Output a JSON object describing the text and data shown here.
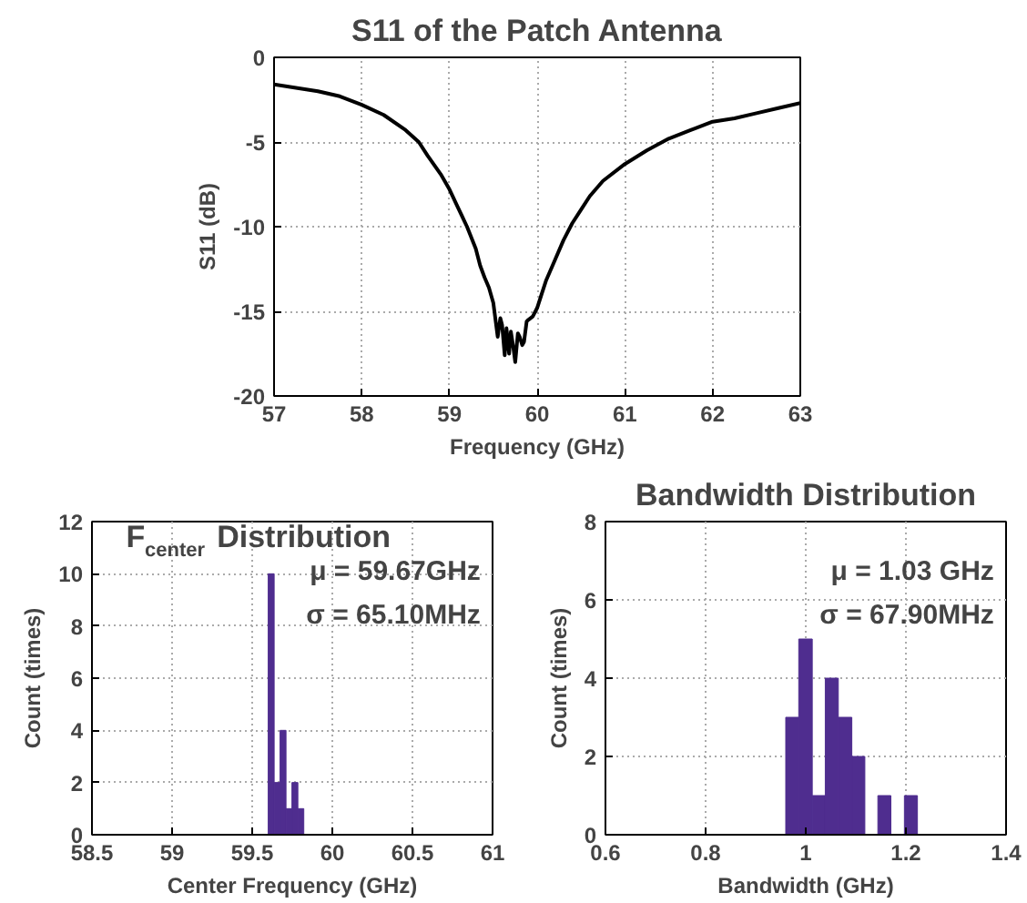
{
  "chart_data": [
    {
      "type": "line",
      "title": "S11 of the Patch Antenna",
      "xlabel": "Frequency (GHz)",
      "ylabel": "S11 (dB)",
      "x": [
        57,
        57.25,
        57.5,
        57.75,
        58,
        58.25,
        58.5,
        58.65,
        58.75,
        58.9,
        59,
        59.1,
        59.2,
        59.3,
        59.35,
        59.4,
        59.45,
        59.5,
        59.55,
        59.58,
        59.6,
        59.63,
        59.65,
        59.68,
        59.7,
        59.73,
        59.75,
        59.78,
        59.8,
        59.83,
        59.85,
        59.88,
        59.9,
        59.95,
        60,
        60.05,
        60.1,
        60.2,
        60.3,
        60.4,
        60.5,
        60.6,
        60.75,
        61,
        61.25,
        61.5,
        61.75,
        62,
        62.25,
        62.5,
        62.75,
        63
      ],
      "series": [
        {
          "color": "#000000",
          "values": [
            -1.6,
            -1.8,
            -2.0,
            -2.3,
            -2.8,
            -3.4,
            -4.3,
            -5.0,
            -5.8,
            -6.9,
            -7.8,
            -8.9,
            -10.0,
            -11.3,
            -12.3,
            -13.0,
            -13.6,
            -14.5,
            -16.5,
            -15.4,
            -15.8,
            -17.6,
            -16.0,
            -17.5,
            -16.2,
            -17.2,
            -18.0,
            -16.3,
            -16.5,
            -17.0,
            -16.8,
            -15.6,
            -15.5,
            -15.3,
            -14.8,
            -14.0,
            -13.2,
            -12.0,
            -10.8,
            -9.8,
            -9.0,
            -8.2,
            -7.3,
            -6.3,
            -5.5,
            -4.8,
            -4.3,
            -3.8,
            -3.6,
            -3.3,
            -3.0,
            -2.7
          ]
        }
      ],
      "xlim": [
        57,
        63
      ],
      "xticks": [
        57,
        58,
        59,
        60,
        61,
        62,
        63
      ],
      "ylim": [
        -20,
        0
      ],
      "yticks": [
        -20,
        -15,
        -10,
        -5,
        0
      ],
      "grid": true,
      "line_style": "solid",
      "marker": "none"
    },
    {
      "type": "histogram",
      "title": "F$_{center}$ Distribution",
      "xlabel": "Center Frequency (GHz)",
      "ylabel": "Count (times)",
      "bins": [
        59.6,
        59.637,
        59.674,
        59.711,
        59.748,
        59.785,
        59.822
      ],
      "values": [
        10,
        2,
        4,
        1,
        2,
        1
      ],
      "color": "#4f2d8f",
      "xlim": [
        58.5,
        61
      ],
      "xticks": [
        58.5,
        59,
        59.5,
        60,
        60.5,
        61
      ],
      "ylim": [
        0,
        12
      ],
      "yticks": [
        0,
        2,
        4,
        6,
        8,
        10,
        12
      ],
      "grid": true,
      "annotations": [
        "μ = 59.67GHz",
        "σ = 65.10MHz"
      ]
    },
    {
      "type": "histogram",
      "title": "Bandwidth Distribution",
      "xlabel": "Bandwidth (GHz)",
      "ylabel": "Count (times)",
      "bins": [
        0.96,
        0.986,
        1.013,
        1.039,
        1.065,
        1.092,
        1.118,
        1.144,
        1.17,
        1.197,
        1.223
      ],
      "values": [
        3,
        5,
        1,
        4,
        3,
        2,
        0,
        1,
        0,
        1
      ],
      "color": "#4f2d8f",
      "xlim": [
        0.6,
        1.4
      ],
      "xticks": [
        0.6,
        0.8,
        1,
        1.2,
        1.4
      ],
      "ylim": [
        0,
        8
      ],
      "yticks": [
        0,
        2,
        4,
        6,
        8
      ],
      "grid": true,
      "annotations": [
        "μ = 1.03 GHz",
        "σ = 67.90MHz"
      ]
    }
  ]
}
